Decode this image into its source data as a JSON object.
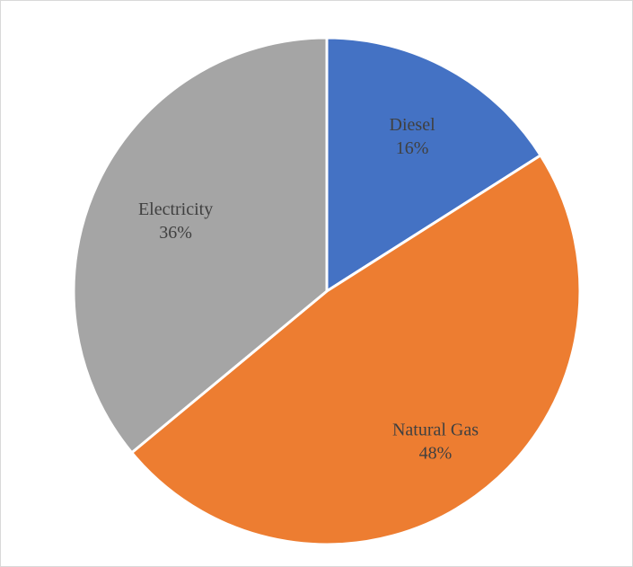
{
  "chart_data": {
    "type": "pie",
    "slices": [
      {
        "label": "Diesel",
        "value": 16,
        "value_label": "16%",
        "color": "#4472C4"
      },
      {
        "label": "Natural Gas",
        "value": 48,
        "value_label": "48%",
        "color": "#ED7D31"
      },
      {
        "label": "Electricity",
        "value": 36,
        "value_label": "36%",
        "color": "#A5A5A5"
      }
    ],
    "start": "12 o'clock",
    "direction": "clockwise",
    "legend": "none",
    "data_labels": "inside slices"
  }
}
